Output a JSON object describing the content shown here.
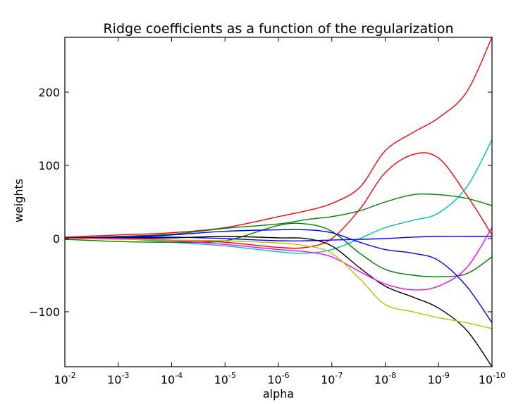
{
  "chart_data": {
    "type": "line",
    "title": "Ridge coefficients as a function of the regularization",
    "xlabel": "alpha",
    "ylabel": "weights",
    "x_scale": "log",
    "x_reversed": true,
    "xlim": [
      0.01,
      1e-10
    ],
    "ylim": [
      -175,
      275
    ],
    "grid": false,
    "x_ticks": [
      {
        "base": "10",
        "exp": "-2",
        "value": 0.01
      },
      {
        "base": "10",
        "exp": "-3",
        "value": 0.001
      },
      {
        "base": "10",
        "exp": "-4",
        "value": 0.0001
      },
      {
        "base": "10",
        "exp": "-5",
        "value": 1e-05
      },
      {
        "base": "10",
        "exp": "-6",
        "value": 1e-06
      },
      {
        "base": "10",
        "exp": "-7",
        "value": 1e-07
      },
      {
        "base": "10",
        "exp": "-8",
        "value": 1e-08
      },
      {
        "base": "10",
        "exp": "-9",
        "value": 1e-09
      },
      {
        "base": "10",
        "exp": "-10",
        "value": 1e-10
      }
    ],
    "y_ticks": [
      {
        "label": "200",
        "value": 200
      },
      {
        "label": "100",
        "value": 100
      },
      {
        "label": "0",
        "value": 0
      },
      {
        "label": "−100",
        "value": -100
      }
    ],
    "x": [
      0.01,
      0.001,
      0.0001,
      1e-05,
      1e-06,
      3e-07,
      1e-07,
      3e-08,
      1e-08,
      3e-09,
      1e-09,
      3e-10,
      1e-10
    ],
    "series": [
      {
        "color": "#ff0000",
        "values": [
          2,
          5,
          8,
          15,
          30,
          38,
          48,
          70,
          120,
          145,
          165,
          200,
          275
        ]
      },
      {
        "color": "#ff0000",
        "values": [
          1,
          2,
          -2,
          -5,
          -12,
          -12,
          0,
          40,
          90,
          115,
          110,
          60,
          5
        ]
      },
      {
        "color": "#00bfbf",
        "values": [
          -1,
          0,
          -5,
          -10,
          -18,
          -20,
          -15,
          0,
          15,
          25,
          35,
          70,
          135
        ]
      },
      {
        "color": "#008000",
        "values": [
          0,
          3,
          6,
          14,
          20,
          26,
          30,
          38,
          50,
          60,
          60,
          55,
          45
        ]
      },
      {
        "color": "#008000",
        "values": [
          -1,
          -4,
          -5,
          -3,
          18,
          20,
          10,
          -20,
          -42,
          -50,
          -52,
          -48,
          -25
        ]
      },
      {
        "color": "#0000ff",
        "values": [
          0,
          2,
          5,
          10,
          12,
          12,
          8,
          -5,
          -15,
          -20,
          -30,
          -65,
          -115
        ]
      },
      {
        "color": "#0000ff",
        "values": [
          1,
          2,
          2,
          0,
          -3,
          -3,
          -2,
          -1,
          0,
          2,
          3,
          3,
          3
        ]
      },
      {
        "color": "#000000",
        "values": [
          0,
          1,
          1,
          3,
          1,
          0,
          -10,
          -40,
          -65,
          -80,
          -95,
          -125,
          -175
        ]
      },
      {
        "color": "#ff00ff",
        "values": [
          0,
          0,
          -3,
          -8,
          -15,
          -18,
          -25,
          -45,
          -62,
          -70,
          -65,
          -40,
          15
        ]
      },
      {
        "color": "#bfbf00",
        "values": [
          0,
          -1,
          -2,
          -3,
          -6,
          -10,
          -20,
          -55,
          -90,
          -100,
          -108,
          -115,
          -123
        ]
      }
    ]
  }
}
